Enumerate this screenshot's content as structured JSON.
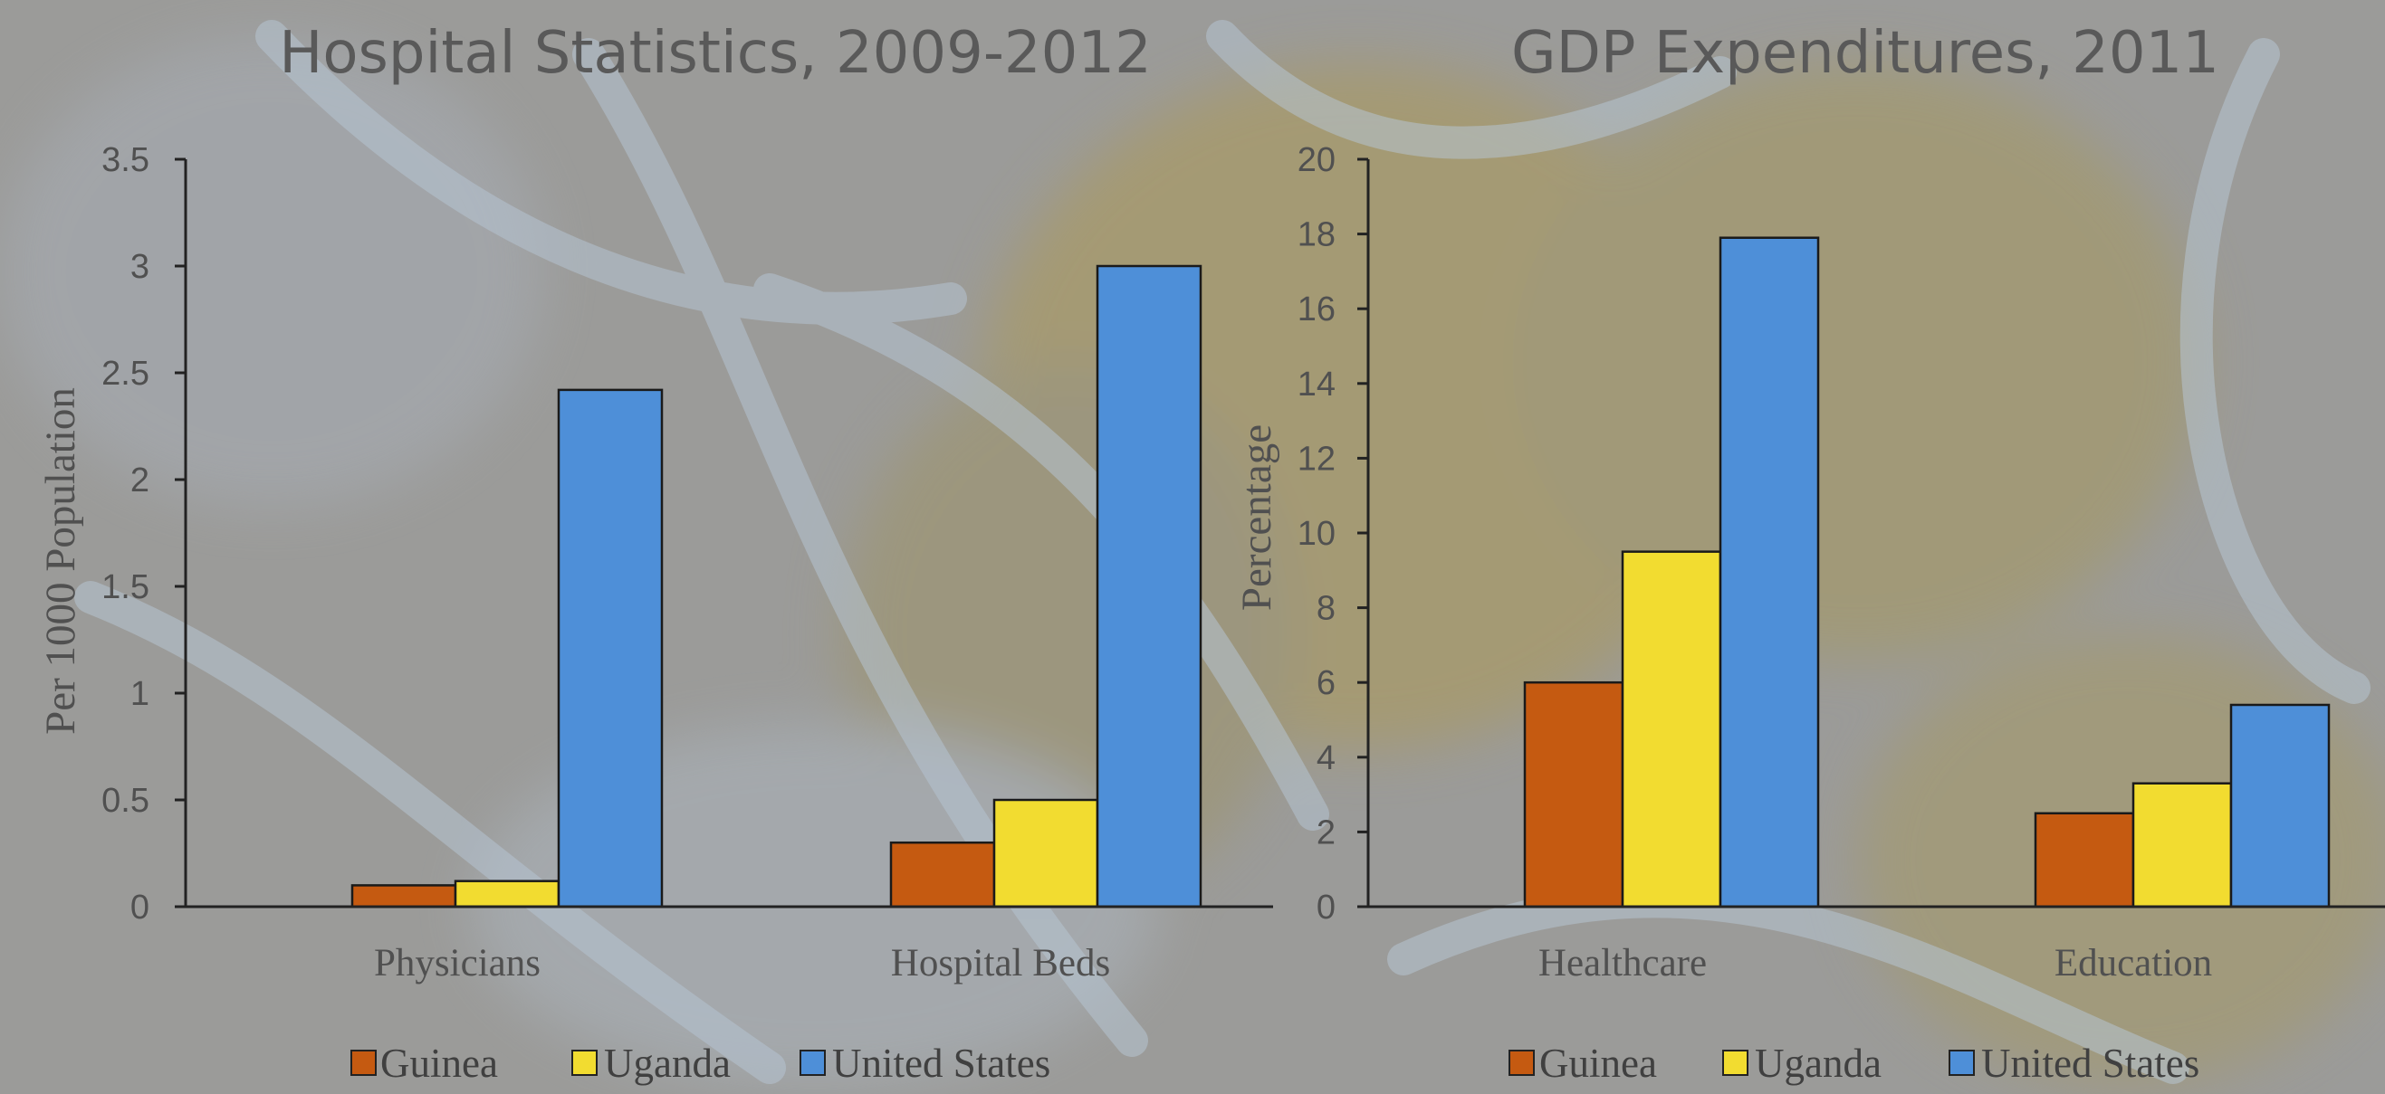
{
  "colors": {
    "Guinea": "#c55a11",
    "Uganda": "#f2dc30",
    "United States": "#4e8fd8"
  },
  "chart_data": [
    {
      "type": "bar",
      "title": "Hospital Statistics, 2009-2012",
      "xlabel": "",
      "ylabel": "Per 1000 Population",
      "categories": [
        "Physicians",
        "Hospital Beds"
      ],
      "series": [
        {
          "name": "Guinea",
          "values": [
            0.1,
            0.3
          ]
        },
        {
          "name": "Uganda",
          "values": [
            0.12,
            0.5
          ]
        },
        {
          "name": "United States",
          "values": [
            2.42,
            3.0
          ]
        }
      ],
      "ylim": [
        0,
        3.5
      ],
      "yticks": [
        "0",
        "0.5",
        "1",
        "1.5",
        "2",
        "2.5",
        "3",
        "3.5"
      ],
      "tick_values": [
        0,
        0.5,
        1,
        1.5,
        2,
        2.5,
        3,
        3.5
      ],
      "grid": false,
      "legend": "bottom"
    },
    {
      "type": "bar",
      "title": "GDP Expenditures, 2011",
      "xlabel": "",
      "ylabel": "Percentage",
      "categories": [
        "Healthcare",
        "Education"
      ],
      "series": [
        {
          "name": "Guinea",
          "values": [
            6.0,
            2.5
          ]
        },
        {
          "name": "Uganda",
          "values": [
            9.5,
            3.3
          ]
        },
        {
          "name": "United States",
          "values": [
            17.9,
            5.4
          ]
        }
      ],
      "ylim": [
        0,
        20
      ],
      "yticks": [
        "0",
        "2",
        "4",
        "6",
        "8",
        "10",
        "12",
        "14",
        "16",
        "18",
        "20"
      ],
      "tick_values": [
        0,
        2,
        4,
        6,
        8,
        10,
        12,
        14,
        16,
        18,
        20
      ],
      "grid": false,
      "legend": "bottom"
    }
  ]
}
